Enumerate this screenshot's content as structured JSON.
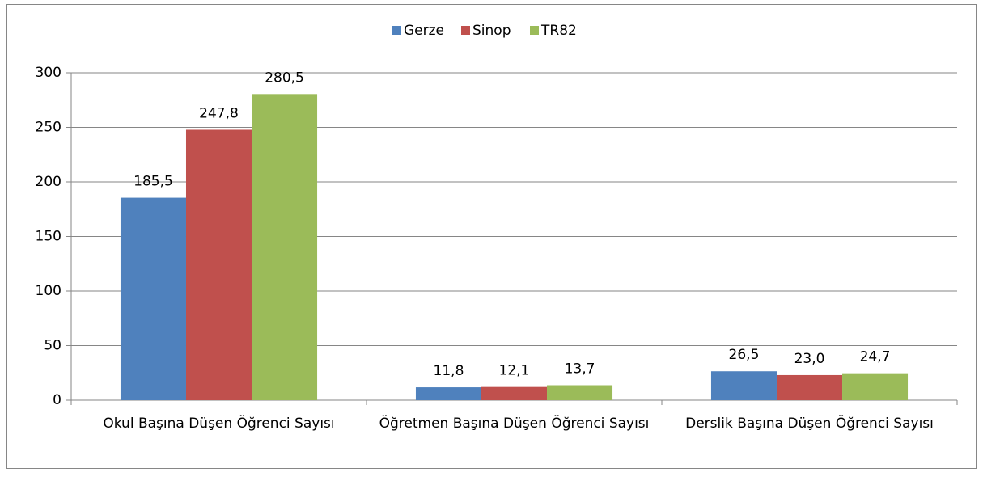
{
  "chart_data": {
    "type": "bar",
    "categories": [
      "Okul Başına Düşen Öğrenci Sayısı",
      "Öğretmen Başına Düşen Öğrenci Sayısı",
      "Derslik Başına Düşen Öğrenci Sayısı"
    ],
    "series": [
      {
        "name": "Gerze",
        "color": "#4f81bd",
        "values": [
          185.5,
          11.8,
          26.5
        ],
        "value_labels": [
          "185,5",
          "11,8",
          "26,5"
        ]
      },
      {
        "name": "Sinop",
        "color": "#c0504d",
        "values": [
          247.8,
          12.1,
          23.0
        ],
        "value_labels": [
          "247,8",
          "12,1",
          "23,0"
        ]
      },
      {
        "name": "TR82",
        "color": "#9bbb59",
        "values": [
          280.5,
          13.7,
          24.7
        ],
        "value_labels": [
          "280,5",
          "13,7",
          "24,7"
        ]
      }
    ],
    "ylim": [
      0,
      300
    ],
    "yticks": [
      0,
      50,
      100,
      150,
      200,
      250,
      300
    ],
    "grid": true,
    "legend": "top"
  }
}
